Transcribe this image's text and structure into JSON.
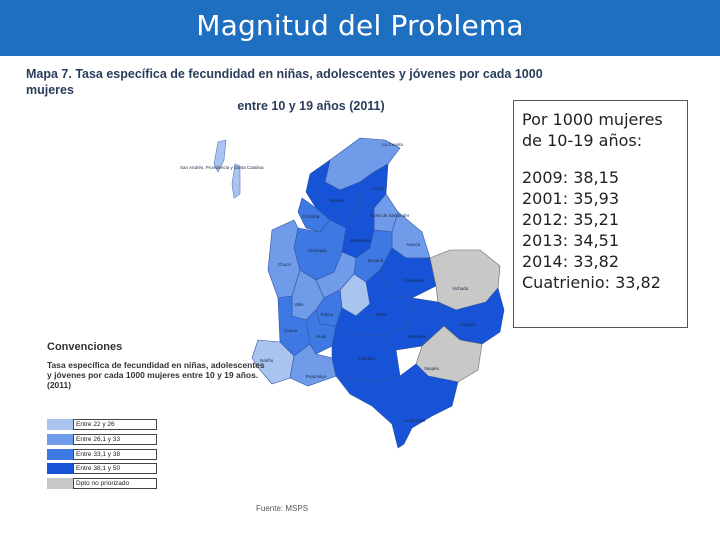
{
  "header": {
    "title": "Magnitud del Problema"
  },
  "map_title": {
    "line1": "Mapa 7. Tasa específica de fecundidad en niñas, adolescentes y jóvenes por cada 1000 mujeres",
    "line2": "entre 10 y 19 años (2011)"
  },
  "info_box": {
    "heading": "Por 1000 mujeres de 10-19 años:",
    "stats": [
      "2009: 38,15",
      "2001: 35,93",
      "2012: 35,21",
      "2013: 34,51",
      "2014: 33,82",
      "Cuatrienio: 33,82"
    ]
  },
  "legend": {
    "title": "Convenciones",
    "description": "Tasa específica de fecundidad en niñas, adolescentes y jóvenes por cada 1000 mujeres entre 10 y 19 años. (2011)",
    "items": [
      {
        "label": "Entre 22 y 26",
        "color": "#a9c4ef"
      },
      {
        "label": "Entre 26,1 y 33",
        "color": "#6f9be8"
      },
      {
        "label": "Entre 33,1 y 38",
        "color": "#3e78e3"
      },
      {
        "label": "Entre 38,1 y 50",
        "color": "#1653d6"
      },
      {
        "label": "Dpto no priorizado",
        "color": "#c8c8c8"
      }
    ]
  },
  "map": {
    "region_labels": [
      "San Andrés, Providencia y Santa Catalina",
      "La Guajira",
      "Cesar",
      "Bolívar",
      "Antioquia",
      "Córdoba",
      "Santander",
      "Norte de Santander",
      "Arauca",
      "Chocó",
      "Boyacá",
      "Casanare",
      "Vichada",
      "Meta",
      "Valle",
      "Cauca",
      "Nariño",
      "Putumayo",
      "Caquetá",
      "Guaviare",
      "Guainía",
      "Vaupés",
      "Amazonas",
      "Huila",
      "Tolima"
    ],
    "colors": {
      "very_light": "#a9c4ef",
      "light": "#6f9be8",
      "medium": "#3e78e3",
      "dark": "#1653d6",
      "gray": "#c8c8c8"
    }
  },
  "source": "Fuente: MSPS"
}
